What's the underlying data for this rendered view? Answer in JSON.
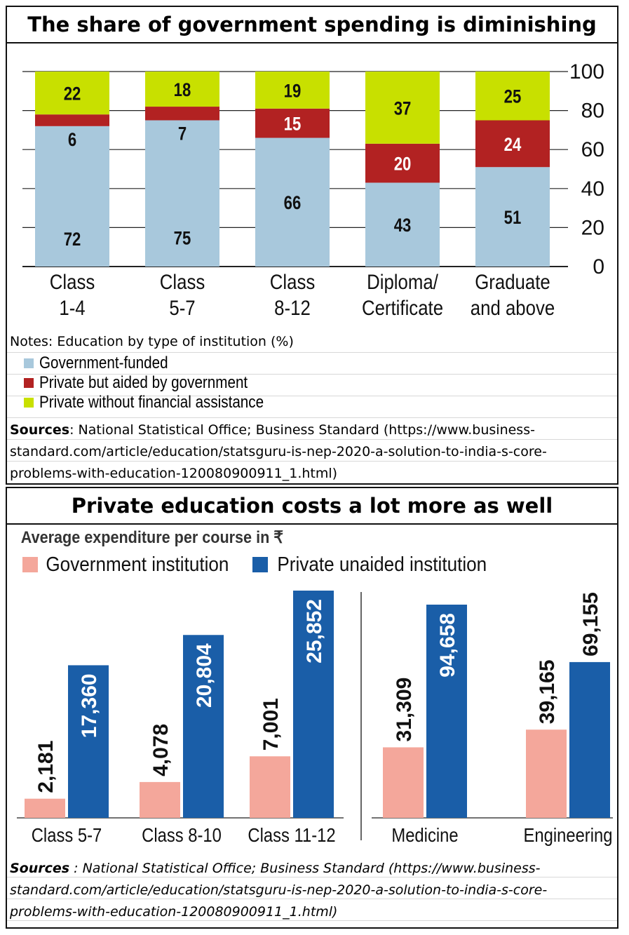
{
  "chart_data": [
    {
      "type": "bar",
      "stacked": true,
      "title": "The share of government spending is diminishing",
      "categories": [
        [
          "Class",
          "1-4"
        ],
        [
          "Class",
          "5-7"
        ],
        [
          "Class",
          "8-12"
        ],
        [
          "Diploma/",
          "Certificate"
        ],
        [
          "Graduate",
          "and above"
        ]
      ],
      "series": [
        {
          "name": "Government-funded",
          "color": "#a8c8dc",
          "values": [
            72,
            75,
            66,
            43,
            51
          ]
        },
        {
          "name": "Private but aided by government",
          "color": "#b22222",
          "values": [
            6,
            7,
            15,
            20,
            24
          ]
        },
        {
          "name": "Private without financial assistance",
          "color": "#c8e000",
          "values": [
            22,
            18,
            19,
            37,
            25
          ]
        }
      ],
      "ylim": [
        0,
        100
      ],
      "yticks": [
        0,
        20,
        40,
        60,
        80,
        100
      ],
      "grid": true,
      "notes": "Notes: Education by type of institution (%)",
      "sources_label": "Sources",
      "sources_text": ": National Statistical Office; Business Standard (https://www.business-standard.com/article/education/statsguru-is-nep-2020-a-solution-to-india-s-core-problems-with-education-120080900911_1.html)"
    },
    {
      "type": "bar",
      "title": "Private education costs a lot more as well",
      "subtitle": "Average expenditure per course in ₹",
      "groups": [
        {
          "categories": [
            "Class 5-7",
            "Class 8-10",
            "Class 11-12"
          ]
        },
        {
          "categories": [
            "Medicine",
            "Engineering"
          ]
        }
      ],
      "categories": [
        "Class 5-7",
        "Class 8-10",
        "Class 11-12",
        "Medicine",
        "Engineering"
      ],
      "series": [
        {
          "name": "Government institution",
          "color": "#f4a79b",
          "values": [
            2181,
            4078,
            7001,
            31309,
            39165
          ],
          "labels": [
            "2,181",
            "4,078",
            "7,001",
            "31,309",
            "39,165"
          ]
        },
        {
          "name": "Private unaided institution",
          "color": "#1a5ea8",
          "values": [
            17360,
            20804,
            25852,
            94658,
            69155
          ],
          "labels": [
            "17,360",
            "20,804",
            "25,852",
            "94,658",
            "69,155"
          ]
        }
      ],
      "sources_label": "Sources",
      "sources_text": " : National Statistical Office; Business Standard (https://www.business-standard.com/article/education/statsguru-is-nep-2020-a-solution-to-india-s-core-problems-with-education-120080900911_1.html)"
    }
  ]
}
